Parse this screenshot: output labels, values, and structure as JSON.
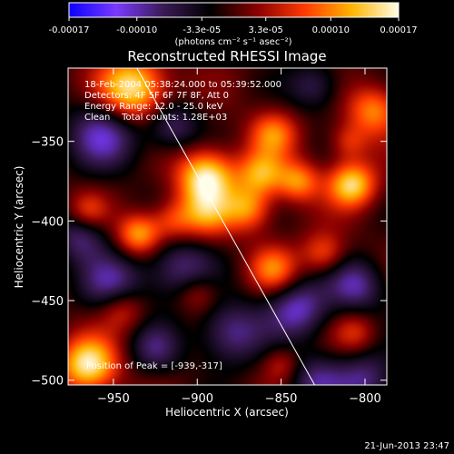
{
  "colorbar": {
    "tick_labels": [
      "-0.00017",
      "-0.00010",
      "-3.3e-05",
      "3.3e-05",
      "0.00010",
      "0.00017"
    ],
    "tick_values": [
      -0.00017,
      -0.0001,
      -3.3e-05,
      3.3e-05,
      0.0001,
      0.00017
    ],
    "unit_label": "(photons cm⁻² s⁻¹ asec⁻²)",
    "colors": [
      "#0a00ff",
      "#7a3aff",
      "#3a1a55",
      "#000000",
      "#8a0000",
      "#ff3a00",
      "#ffb400",
      "#fffde8"
    ]
  },
  "chart_data": {
    "type": "heatmap",
    "title": "Reconstructed RHESSI Image",
    "xlabel": "Heliocentric X (arcsec)",
    "ylabel": "Heliocentric Y (arcsec)",
    "xlim": [
      -977,
      -787
    ],
    "ylim": [
      -503,
      -304
    ],
    "x_ticks": [
      -950,
      -900,
      -850,
      -800
    ],
    "y_ticks": [
      -350,
      -400,
      -450,
      -500
    ],
    "x_tick_labels": [
      "−950",
      "−900",
      "−850",
      "−800"
    ],
    "y_tick_labels": [
      "−350",
      "−400",
      "−450",
      "−500"
    ],
    "info_lines": [
      "18-Feb-2004 05:38:24.000 to 05:39:52.000",
      "Detectors: 4F 5F 6F 7F 8F, Att 0",
      "Energy Range: 12.0 - 25.0 keV",
      "Clean    Total counts: 1.28E+03"
    ],
    "peak_label": "Position of Peak = [-939,-317]",
    "peak_position": [
      -939,
      -317
    ],
    "limb_line": [
      [
        -936,
        -304
      ],
      [
        -830,
        -503
      ]
    ],
    "sources": [
      {
        "x": -939,
        "y": -317,
        "amp": 1.0,
        "s": 14
      },
      {
        "x": -895,
        "y": -372,
        "amp": 0.95,
        "s": 12
      },
      {
        "x": -895,
        "y": -395,
        "amp": 0.55,
        "s": 11
      },
      {
        "x": -870,
        "y": -392,
        "amp": 0.6,
        "s": 10
      },
      {
        "x": -855,
        "y": -345,
        "amp": 0.55,
        "s": 10
      },
      {
        "x": -862,
        "y": -370,
        "amp": 0.65,
        "s": 10
      },
      {
        "x": -840,
        "y": -375,
        "amp": 0.6,
        "s": 9
      },
      {
        "x": -808,
        "y": -377,
        "amp": 0.85,
        "s": 10
      },
      {
        "x": -795,
        "y": -330,
        "amp": 0.6,
        "s": 11
      },
      {
        "x": -810,
        "y": -350,
        "amp": 0.35,
        "s": 8
      },
      {
        "x": -935,
        "y": -408,
        "amp": 0.7,
        "s": 9
      },
      {
        "x": -915,
        "y": -400,
        "amp": 0.4,
        "s": 9
      },
      {
        "x": -965,
        "y": -393,
        "amp": 0.35,
        "s": 8
      },
      {
        "x": -965,
        "y": -490,
        "amp": 0.95,
        "s": 12
      },
      {
        "x": -945,
        "y": -455,
        "amp": 0.45,
        "s": 10
      },
      {
        "x": -855,
        "y": -430,
        "amp": 0.55,
        "s": 10
      },
      {
        "x": -825,
        "y": -420,
        "amp": 0.45,
        "s": 9
      },
      {
        "x": -900,
        "y": -445,
        "amp": 0.35,
        "s": 9
      },
      {
        "x": -806,
        "y": -470,
        "amp": 0.35,
        "s": 9
      },
      {
        "x": -850,
        "y": -490,
        "amp": 0.3,
        "s": 8
      },
      {
        "x": -955,
        "y": -345,
        "amp": -0.6,
        "s": 16
      },
      {
        "x": -950,
        "y": -440,
        "amp": -0.55,
        "s": 14
      },
      {
        "x": -910,
        "y": -430,
        "amp": -0.5,
        "s": 14
      },
      {
        "x": -880,
        "y": -470,
        "amp": -0.55,
        "s": 14
      },
      {
        "x": -840,
        "y": -455,
        "amp": -0.6,
        "s": 13
      },
      {
        "x": -805,
        "y": -440,
        "amp": -0.55,
        "s": 12
      },
      {
        "x": -800,
        "y": -500,
        "amp": -0.5,
        "s": 13
      },
      {
        "x": -830,
        "y": -500,
        "amp": -0.45,
        "s": 12
      },
      {
        "x": -915,
        "y": -340,
        "amp": -0.45,
        "s": 11
      },
      {
        "x": -830,
        "y": -315,
        "amp": -0.4,
        "s": 11
      },
      {
        "x": -970,
        "y": -410,
        "amp": -0.45,
        "s": 11
      },
      {
        "x": -925,
        "y": -480,
        "amp": -0.4,
        "s": 11
      }
    ]
  },
  "timestamp": "21-Jun-2013 23:47"
}
